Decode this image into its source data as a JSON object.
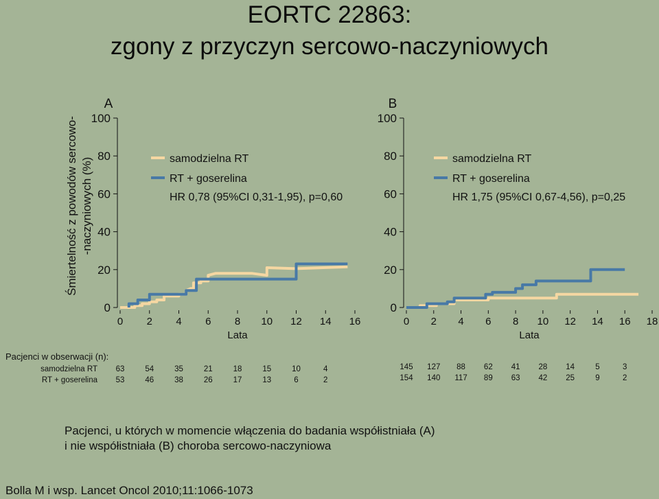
{
  "title": {
    "line1": "EORTC 22863:",
    "line2": "zgony z przyczyn sercowo-naczyniowych"
  },
  "ylabel": {
    "line1": "Śmiertelność z powodów sercowo-",
    "line2": "-naczyniowych (%)"
  },
  "colors": {
    "background": "#a4b496",
    "rt_alone": "#f5d7a2",
    "rt_goserelin": "#4879a6",
    "text": "#111111"
  },
  "chart_data": [
    {
      "type": "line",
      "panel": "A",
      "xlabel": "Lata",
      "xlim": [
        0,
        16
      ],
      "ylim": [
        0,
        100
      ],
      "xticks": [
        0,
        2,
        4,
        6,
        8,
        10,
        12,
        14,
        16
      ],
      "yticks": [
        0,
        20,
        40,
        60,
        80,
        100
      ],
      "legend": [
        "samodzielna RT",
        "RT + goserelina"
      ],
      "hr_text": "HR 0,78 (95%CI 0,31-1,95), p=0,60",
      "series": [
        {
          "name": "samodzielna RT",
          "points": [
            [
              0,
              0
            ],
            [
              1,
              0
            ],
            [
              1,
              1
            ],
            [
              1.5,
              1
            ],
            [
              1.5,
              2
            ],
            [
              2,
              2
            ],
            [
              2,
              3
            ],
            [
              2.5,
              3
            ],
            [
              2.5,
              4
            ],
            [
              3,
              4
            ],
            [
              3,
              6
            ],
            [
              4,
              6
            ],
            [
              4,
              7
            ],
            [
              4.5,
              7
            ],
            [
              4.5,
              9
            ],
            [
              4.8,
              10
            ],
            [
              5,
              10
            ],
            [
              5,
              13
            ],
            [
              5.5,
              13
            ],
            [
              5.5,
              14
            ],
            [
              6,
              14
            ],
            [
              6,
              17
            ],
            [
              6.5,
              18
            ],
            [
              8,
              18
            ],
            [
              9,
              18
            ],
            [
              10,
              17
            ],
            [
              10,
              21
            ],
            [
              12,
              20.5
            ],
            [
              15.5,
              21.5
            ]
          ]
        },
        {
          "name": "RT + goserelina",
          "points": [
            [
              0.6,
              0
            ],
            [
              0.6,
              2
            ],
            [
              1.2,
              2
            ],
            [
              1.2,
              4
            ],
            [
              2,
              4
            ],
            [
              2,
              7
            ],
            [
              4.5,
              7
            ],
            [
              4.5,
              9
            ],
            [
              5.2,
              9
            ],
            [
              5.2,
              15
            ],
            [
              12,
              15
            ],
            [
              12,
              23
            ],
            [
              15.5,
              23
            ]
          ]
        }
      ],
      "at_risk": {
        "title": "Pacjenci w obserwacji (n):",
        "rows": [
          {
            "label": "samodzielna RT",
            "values": [
              "63",
              "54",
              "35",
              "21",
              "18",
              "15",
              "10",
              "4"
            ]
          },
          {
            "label": "RT + goserelina",
            "values": [
              "53",
              "46",
              "38",
              "26",
              "17",
              "13",
              "6",
              "2"
            ]
          }
        ]
      }
    },
    {
      "type": "line",
      "panel": "B",
      "xlabel": "Lata",
      "xlim": [
        0,
        18
      ],
      "ylim": [
        0,
        100
      ],
      "xticks": [
        0,
        2,
        4,
        6,
        8,
        10,
        12,
        14,
        16,
        18
      ],
      "yticks": [
        0,
        20,
        40,
        60,
        80,
        100
      ],
      "legend": [
        "samodzielna RT",
        "RT + goserelina"
      ],
      "hr_text": "HR 1,75 (95%CI 0,67-4,56), p=0,25",
      "series": [
        {
          "name": "samodzielna RT",
          "points": [
            [
              0,
              0
            ],
            [
              1,
              0
            ],
            [
              1,
              1
            ],
            [
              2.2,
              1
            ],
            [
              2.2,
              2
            ],
            [
              3.5,
              2
            ],
            [
              3.5,
              4
            ],
            [
              6,
              4
            ],
            [
              6,
              5
            ],
            [
              11,
              5
            ],
            [
              11,
              7
            ],
            [
              17,
              7
            ]
          ]
        },
        {
          "name": "RT + goserelina",
          "points": [
            [
              0,
              0
            ],
            [
              1.5,
              0
            ],
            [
              1.5,
              2
            ],
            [
              3,
              2
            ],
            [
              3,
              3
            ],
            [
              3.5,
              3
            ],
            [
              3.5,
              5
            ],
            [
              5.8,
              5
            ],
            [
              5.8,
              7
            ],
            [
              6.3,
              7
            ],
            [
              6.3,
              8
            ],
            [
              8,
              8
            ],
            [
              8,
              10
            ],
            [
              8.5,
              10
            ],
            [
              8.5,
              12
            ],
            [
              9.5,
              12
            ],
            [
              9.5,
              14
            ],
            [
              13.5,
              14
            ],
            [
              13.5,
              20
            ],
            [
              16,
              20
            ]
          ]
        }
      ],
      "at_risk": {
        "rows": [
          {
            "label": "samodzielna RT",
            "values": [
              "145",
              "127",
              "88",
              "62",
              "41",
              "28",
              "14",
              "5",
              "3"
            ]
          },
          {
            "label": "RT + goserelina",
            "values": [
              "154",
              "140",
              "117",
              "89",
              "63",
              "42",
              "25",
              "9",
              "2"
            ]
          }
        ]
      }
    }
  ],
  "caption": {
    "line1": "Pacjenci, u których w momencie włączenia do badania współistniała (A)",
    "line2": "i nie współistniała (B) choroba sercowo-naczyniowa"
  },
  "source": "Bolla M i wsp. Lancet Oncol 2010;11:1066-1073"
}
